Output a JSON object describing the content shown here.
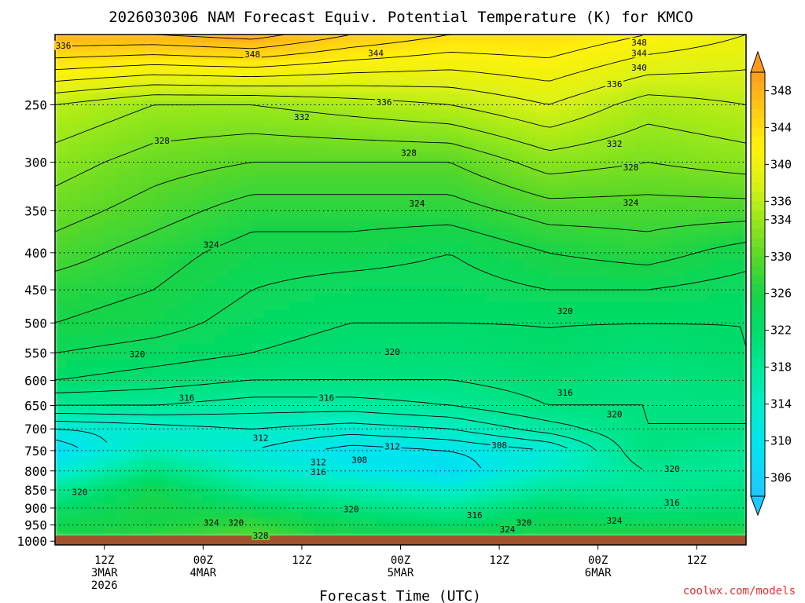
{
  "chart_data": {
    "type": "heatmap",
    "title": "2026030306 NAM Forecast Equiv. Potential Temperature (K) for KMCO",
    "xlabel": "Forecast Time (UTC)",
    "ylabel": "",
    "credit": "coolwx.com/models",
    "y_scale": "log-pressure",
    "y_ticks": [
      250,
      300,
      350,
      400,
      450,
      500,
      550,
      600,
      650,
      700,
      750,
      800,
      850,
      900,
      950,
      1000
    ],
    "y_tick_labels": [
      "250",
      "300",
      "350",
      "400",
      "450",
      "500",
      "550",
      "600",
      "650",
      "700",
      "750",
      "800",
      "850",
      "900",
      "950",
      "1000"
    ],
    "ylim": [
      1012,
      200
    ],
    "x_range_hours": [
      0,
      84
    ],
    "x_ticks": [
      {
        "hour": 6,
        "lines": [
          "12Z",
          "3MAR",
          "2026"
        ]
      },
      {
        "hour": 18,
        "lines": [
          "00Z",
          "4MAR"
        ]
      },
      {
        "hour": 30,
        "lines": [
          "12Z"
        ]
      },
      {
        "hour": 42,
        "lines": [
          "00Z",
          "5MAR"
        ]
      },
      {
        "hour": 54,
        "lines": [
          "12Z"
        ]
      },
      {
        "hour": 66,
        "lines": [
          "00Z",
          "6MAR"
        ]
      },
      {
        "hour": 78,
        "lines": [
          "12Z"
        ]
      }
    ],
    "colorbar_ticks": [
      348,
      344,
      340,
      336,
      334,
      330,
      326,
      322,
      318,
      314,
      310,
      306
    ],
    "colorbar_labels": [
      "348",
      "344",
      "340",
      "336",
      "334",
      "330",
      "326",
      "322",
      "318",
      "314",
      "310",
      "306"
    ],
    "colormap": [
      {
        "v": 304,
        "c": "#1ec8ff"
      },
      {
        "v": 310,
        "c": "#00e6ee"
      },
      {
        "v": 314,
        "c": "#00eec6"
      },
      {
        "v": 318,
        "c": "#00e896"
      },
      {
        "v": 322,
        "c": "#00dc6a"
      },
      {
        "v": 326,
        "c": "#18d448"
      },
      {
        "v": 330,
        "c": "#5ad828"
      },
      {
        "v": 334,
        "c": "#9ae81a"
      },
      {
        "v": 338,
        "c": "#dcf214"
      },
      {
        "v": 342,
        "c": "#fff20a"
      },
      {
        "v": 346,
        "c": "#ffc814"
      },
      {
        "v": 350,
        "c": "#ff9a1e"
      }
    ],
    "ground_color": "#a0522d",
    "levels": [
      1000,
      950,
      900,
      850,
      800,
      750,
      700,
      650,
      600,
      550,
      500,
      450,
      400,
      350,
      300,
      250,
      200
    ],
    "series": [
      {
        "hour": 0,
        "values": [
          326,
          325,
          322,
          318,
          312,
          308,
          312,
          318,
          322,
          324,
          326,
          327,
          329,
          331,
          333,
          336,
          348
        ]
      },
      {
        "hour": 12,
        "values": [
          328,
          326,
          326,
          325,
          320,
          315,
          313,
          318,
          321,
          323,
          325,
          326,
          327,
          329,
          331,
          334,
          348
        ]
      },
      {
        "hour": 24,
        "values": [
          330,
          328,
          323,
          318,
          314,
          312,
          314,
          317,
          320,
          322,
          323,
          324,
          325,
          327,
          330,
          334,
          349
        ]
      },
      {
        "hour": 36,
        "values": [
          326,
          324,
          320,
          316,
          311,
          309,
          313,
          317,
          320,
          321,
          322,
          323,
          325,
          327,
          330,
          335,
          346
        ]
      },
      {
        "hour": 48,
        "values": [
          326,
          322,
          318,
          313,
          308,
          310,
          314,
          318,
          320,
          321,
          322,
          323,
          324,
          327,
          330,
          336,
          344
        ]
      },
      {
        "hour": 60,
        "values": [
          326,
          325,
          322,
          318,
          314,
          312,
          317,
          320,
          321,
          322,
          322,
          324,
          326,
          329,
          333,
          338,
          344
        ]
      },
      {
        "hour": 72,
        "values": [
          328,
          324,
          320,
          318,
          318,
          320,
          320,
          320,
          320,
          321,
          322,
          324,
          327,
          329,
          332,
          335,
          342
        ]
      },
      {
        "hour": 84,
        "values": [
          328,
          324,
          321,
          320,
          318,
          318,
          320,
          320,
          321,
          322,
          322,
          323,
          325,
          329,
          333,
          336,
          340
        ]
      }
    ],
    "contour_labels": [
      {
        "hour": 1,
        "p": 207,
        "text": "336"
      },
      {
        "hour": 24,
        "p": 213,
        "text": "348"
      },
      {
        "hour": 39,
        "p": 212,
        "text": "344"
      },
      {
        "hour": 71,
        "p": 205,
        "text": "348"
      },
      {
        "hour": 71,
        "p": 212,
        "text": "344"
      },
      {
        "hour": 71,
        "p": 222,
        "text": "340"
      },
      {
        "hour": 68,
        "p": 234,
        "text": "336"
      },
      {
        "hour": 40,
        "p": 248,
        "text": "336"
      },
      {
        "hour": 30,
        "p": 260,
        "text": "332"
      },
      {
        "hour": 13,
        "p": 280,
        "text": "328"
      },
      {
        "hour": 43,
        "p": 291,
        "text": "328"
      },
      {
        "hour": 68,
        "p": 283,
        "text": "332"
      },
      {
        "hour": 70,
        "p": 305,
        "text": "328"
      },
      {
        "hour": 44,
        "p": 342,
        "text": "324"
      },
      {
        "hour": 70,
        "p": 341,
        "text": "324"
      },
      {
        "hour": 19,
        "p": 390,
        "text": "324"
      },
      {
        "hour": 62,
        "p": 481,
        "text": "320"
      },
      {
        "hour": 41,
        "p": 548,
        "text": "320"
      },
      {
        "hour": 10,
        "p": 552,
        "text": "320"
      },
      {
        "hour": 16,
        "p": 634,
        "text": "316"
      },
      {
        "hour": 33,
        "p": 634,
        "text": "316"
      },
      {
        "hour": 62,
        "p": 624,
        "text": "316"
      },
      {
        "hour": 68,
        "p": 668,
        "text": "320"
      },
      {
        "hour": 25,
        "p": 720,
        "text": "312"
      },
      {
        "hour": 41,
        "p": 740,
        "text": "312"
      },
      {
        "hour": 54,
        "p": 737,
        "text": "308"
      },
      {
        "hour": 32,
        "p": 778,
        "text": "312"
      },
      {
        "hour": 37,
        "p": 772,
        "text": "308"
      },
      {
        "hour": 32,
        "p": 802,
        "text": "316"
      },
      {
        "hour": 75,
        "p": 795,
        "text": "320"
      },
      {
        "hour": 3,
        "p": 855,
        "text": "320"
      },
      {
        "hour": 75,
        "p": 885,
        "text": "316"
      },
      {
        "hour": 36,
        "p": 903,
        "text": "320"
      },
      {
        "hour": 51,
        "p": 921,
        "text": "316"
      },
      {
        "hour": 19,
        "p": 943,
        "text": "324"
      },
      {
        "hour": 22,
        "p": 943,
        "text": "320"
      },
      {
        "hour": 57,
        "p": 943,
        "text": "320"
      },
      {
        "hour": 55,
        "p": 963,
        "text": "324"
      },
      {
        "hour": 68,
        "p": 937,
        "text": "324"
      },
      {
        "hour": 25,
        "p": 982,
        "text": "328"
      }
    ]
  }
}
